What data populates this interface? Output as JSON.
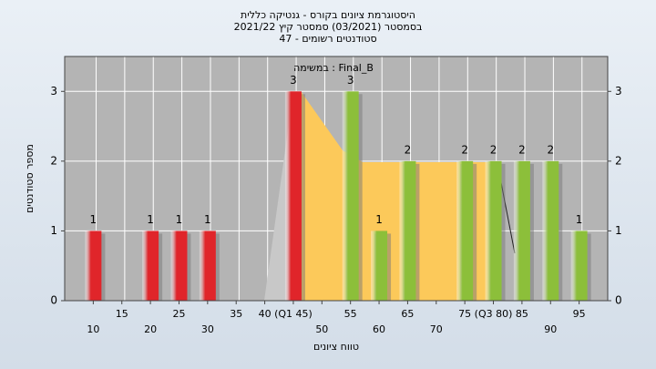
{
  "chart_data": {
    "type": "bar",
    "title": "היסטוגרמת ציונים בקורס - גנטיקה כללית",
    "subtitle": "בסמסטר (03/2021) סמסטר קיץ 2021/22",
    "subtitle2": "סטודנטים רשומים - 47",
    "annotation": "במשימה : Final_B",
    "x_label": "טווח ציונים",
    "y_label": "מספר סטודנטים",
    "x": [
      10,
      15,
      20,
      25,
      30,
      35,
      40,
      45,
      50,
      55,
      60,
      65,
      70,
      75,
      80,
      85,
      90,
      95
    ],
    "values": [
      1,
      0,
      1,
      1,
      1,
      0,
      0,
      3,
      0,
      3,
      1,
      2,
      0,
      2,
      2,
      2,
      2,
      1
    ],
    "colors": [
      "#e0252a",
      "#e0252a",
      "#e0252a",
      "#e0252a",
      "#e0252a",
      "#e0252a",
      "#e0252a",
      "#e0252a",
      "#8cbf3a",
      "#8cbf3a",
      "#8cbf3a",
      "#8cbf3a",
      "#8cbf3a",
      "#8cbf3a",
      "#8cbf3a",
      "#8cbf3a",
      "#8cbf3a",
      "#8cbf3a"
    ],
    "xlim": [
      5,
      100
    ],
    "xticks": [
      10,
      15,
      20,
      25,
      30,
      35,
      40,
      {
        "value": 45,
        "label": "(Q1 45)"
      },
      50,
      55,
      60,
      65,
      70,
      75,
      {
        "value": 80,
        "label": "(Q3 80)"
      },
      85,
      90,
      95
    ],
    "ylim": [
      0,
      3.5
    ],
    "yticks": [
      0,
      1,
      2,
      3
    ],
    "grid": true
  }
}
